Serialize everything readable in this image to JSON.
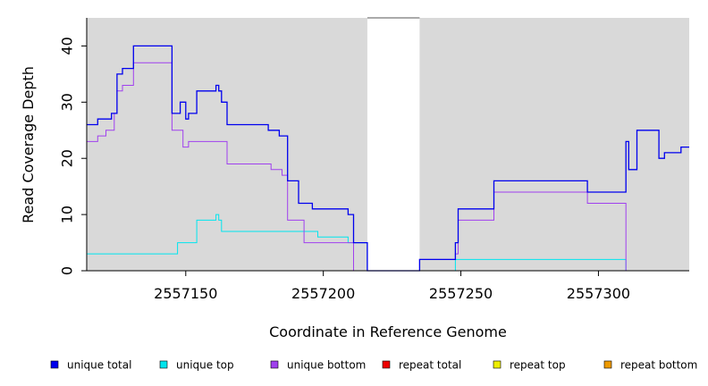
{
  "chart_data": {
    "type": "line",
    "step": true,
    "xlabel": "Coordinate in Reference Genome",
    "ylabel": "Read Coverage Depth",
    "xlim": [
      2557114,
      2557333
    ],
    "ylim": [
      0,
      45
    ],
    "x_ticks": [
      2557150,
      2557200,
      2557250,
      2557300
    ],
    "x_tick_labels": [
      "2557150",
      "2557200",
      "2557250",
      "2557300"
    ],
    "y_ticks": [
      0,
      10,
      20,
      30,
      40
    ],
    "y_tick_labels": [
      "0",
      "10",
      "20",
      "30",
      "40"
    ],
    "shaded_regions": [
      [
        2557114,
        2557216
      ],
      [
        2557235,
        2557333
      ]
    ],
    "background_color": "#d9d9d9",
    "legend_position": "bottom",
    "series": [
      {
        "name": "unique total",
        "color": "#0000ee",
        "points": [
          [
            2557114,
            26
          ],
          [
            2557116,
            26
          ],
          [
            2557118,
            27
          ],
          [
            2557123,
            28
          ],
          [
            2557125,
            35
          ],
          [
            2557127,
            36
          ],
          [
            2557131,
            40
          ],
          [
            2557145,
            28
          ],
          [
            2557148,
            30
          ],
          [
            2557150,
            27
          ],
          [
            2557151,
            28
          ],
          [
            2557154,
            32
          ],
          [
            2557161,
            33
          ],
          [
            2557162,
            32
          ],
          [
            2557163,
            30
          ],
          [
            2557165,
            26
          ],
          [
            2557180,
            25
          ],
          [
            2557184,
            24
          ],
          [
            2557187,
            16
          ],
          [
            2557191,
            12
          ],
          [
            2557196,
            11
          ],
          [
            2557209,
            10
          ],
          [
            2557211,
            5
          ],
          [
            2557216,
            0
          ],
          [
            2557235,
            2
          ],
          [
            2557248,
            5
          ],
          [
            2557249,
            11
          ],
          [
            2557262,
            16
          ],
          [
            2557296,
            14
          ],
          [
            2557310,
            23
          ],
          [
            2557311,
            18
          ],
          [
            2557314,
            25
          ],
          [
            2557322,
            20
          ],
          [
            2557324,
            21
          ],
          [
            2557330,
            22
          ],
          [
            2557333,
            22
          ]
        ]
      },
      {
        "name": "unique top",
        "color": "#00e5ee",
        "points": [
          [
            2557114,
            3
          ],
          [
            2557147,
            5
          ],
          [
            2557154,
            9
          ],
          [
            2557161,
            10
          ],
          [
            2557162,
            9
          ],
          [
            2557163,
            7
          ],
          [
            2557198,
            6
          ],
          [
            2557209,
            5
          ],
          [
            2557216,
            0
          ],
          [
            2557248,
            2
          ],
          [
            2557310,
            0
          ],
          [
            2557333,
            0
          ]
        ]
      },
      {
        "name": "unique bottom",
        "color": "#a040ee",
        "points": [
          [
            2557114,
            23
          ],
          [
            2557118,
            24
          ],
          [
            2557121,
            25
          ],
          [
            2557124,
            28
          ],
          [
            2557125,
            32
          ],
          [
            2557127,
            33
          ],
          [
            2557131,
            37
          ],
          [
            2557145,
            25
          ],
          [
            2557149,
            22
          ],
          [
            2557151,
            23
          ],
          [
            2557165,
            19
          ],
          [
            2557181,
            18
          ],
          [
            2557185,
            17
          ],
          [
            2557187,
            9
          ],
          [
            2557193,
            5
          ],
          [
            2557211,
            0
          ],
          [
            2557235,
            2
          ],
          [
            2557248,
            3
          ],
          [
            2557249,
            9
          ],
          [
            2557262,
            14
          ],
          [
            2557296,
            12
          ],
          [
            2557310,
            0
          ],
          [
            2557333,
            0
          ]
        ]
      },
      {
        "name": "repeat total",
        "color": "#ee0000",
        "points": [
          [
            2557114,
            0
          ],
          [
            2557333,
            0
          ]
        ]
      },
      {
        "name": "repeat top",
        "color": "#eeee00",
        "points": [
          [
            2557114,
            0
          ],
          [
            2557333,
            0
          ]
        ]
      },
      {
        "name": "repeat bottom",
        "color": "#ee9a00",
        "points": [
          [
            2557114,
            0
          ],
          [
            2557333,
            0
          ]
        ]
      }
    ]
  }
}
